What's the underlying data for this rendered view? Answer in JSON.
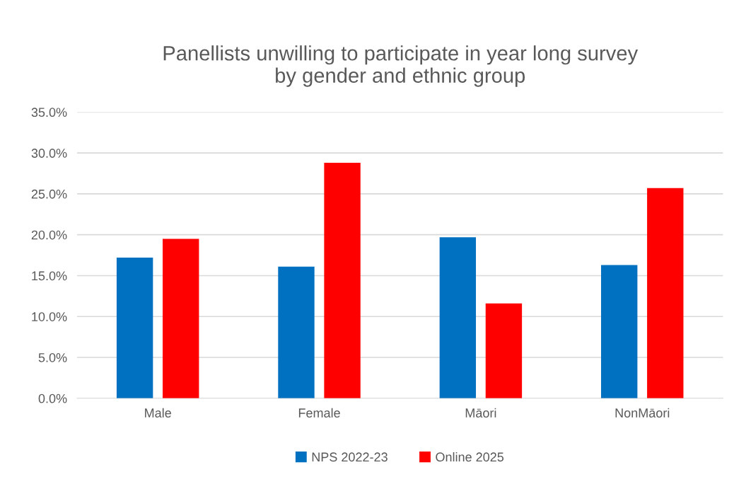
{
  "chart_data": {
    "type": "bar",
    "title": "Panellists unwilling to participate in year long survey\nby gender and ethnic group",
    "categories": [
      "Male",
      "Female",
      "Māori",
      "NonMāori"
    ],
    "series": [
      {
        "name": "NPS 2022-23",
        "color": "#0070c0",
        "values": [
          17.2,
          16.1,
          19.7,
          16.3
        ]
      },
      {
        "name": "Online 2025",
        "color": "#ff0000",
        "values": [
          19.5,
          28.8,
          11.6,
          25.7
        ]
      }
    ],
    "ylim": [
      0,
      35
    ],
    "yticks": [
      {
        "value": 0,
        "label": "0.0%"
      },
      {
        "value": 5,
        "label": "5.0%"
      },
      {
        "value": 10,
        "label": "10.0%"
      },
      {
        "value": 15,
        "label": "15.0%"
      },
      {
        "value": 20,
        "label": "20.0%"
      },
      {
        "value": 25,
        "label": "25.0%"
      },
      {
        "value": 30,
        "label": "30.0%"
      },
      {
        "value": 35,
        "label": "35.0%"
      }
    ],
    "grid": "y",
    "legend": "bottom"
  }
}
